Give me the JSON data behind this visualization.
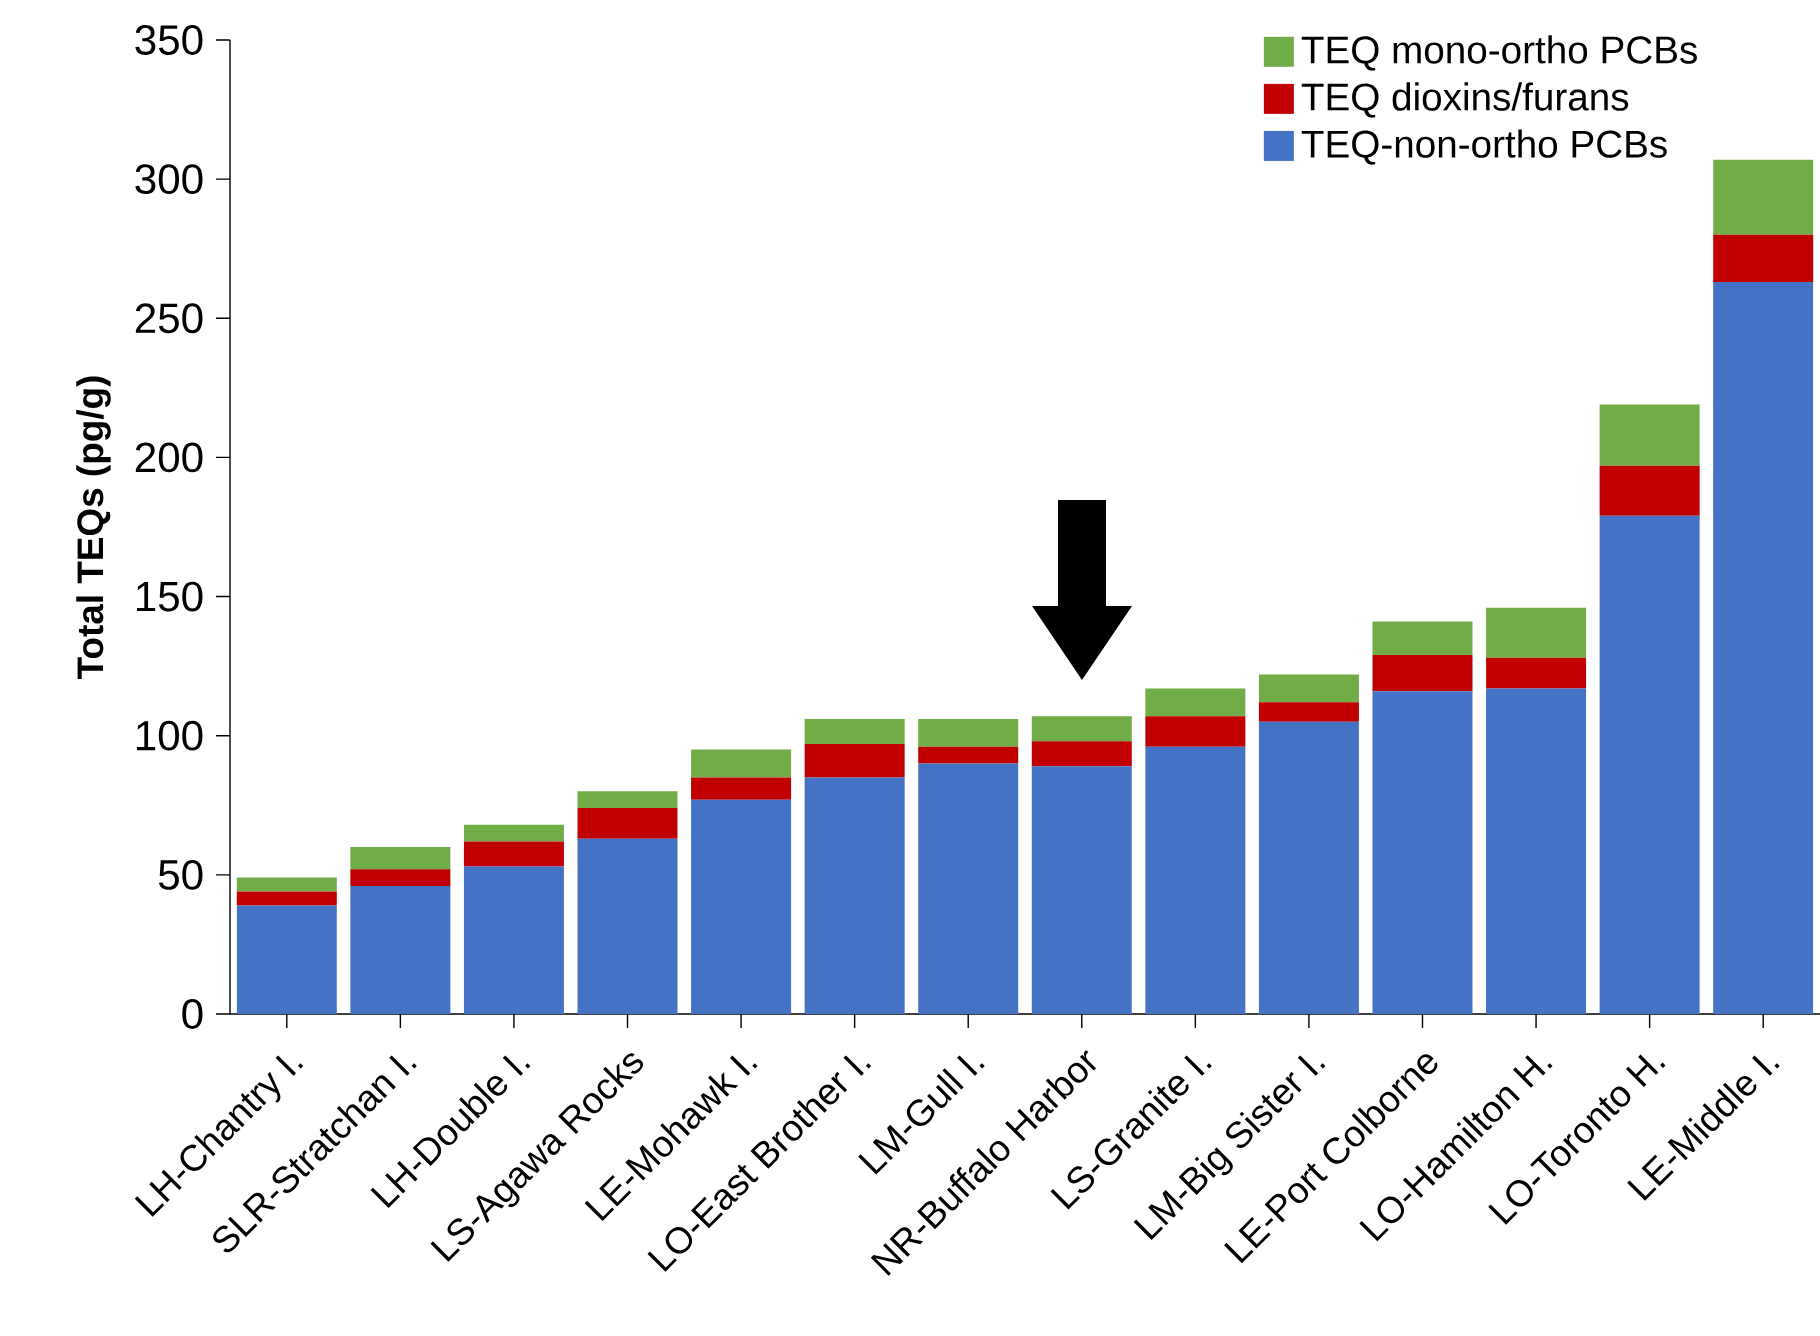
{
  "chart_data": {
    "type": "bar",
    "stacked": true,
    "ylabel": "Total TEQs (pg/g)",
    "categories": [
      "LH-Chantry I.",
      "SLR-Stratchan I.",
      "LH-Double I.",
      "LS-Agawa Rocks",
      "LE-Mohawk I.",
      "LO-East Brother I.",
      "LM-Gull I.",
      "NR-Buffalo Harbor",
      "LS-Granite I.",
      "LM-Big Sister I.",
      "LE-Port Colborne",
      "LO-Hamilton H.",
      "LO-Toronto H.",
      "LE-Middle I."
    ],
    "series": [
      {
        "name": "TEQ-non-ortho PCBs",
        "color": "#4472c4",
        "values": [
          39,
          46,
          53,
          63,
          77,
          85,
          90,
          89,
          96,
          105,
          116,
          117,
          179,
          263
        ]
      },
      {
        "name": "TEQ dioxins/furans",
        "color": "#c00000",
        "values": [
          5,
          6,
          9,
          11,
          8,
          12,
          6,
          9,
          11,
          7,
          13,
          11,
          18,
          17
        ]
      },
      {
        "name": "TEQ mono-ortho PCBs",
        "color": "#70ad47",
        "values": [
          5,
          8,
          6,
          6,
          10,
          9,
          10,
          9,
          10,
          10,
          12,
          18,
          22,
          27
        ]
      }
    ],
    "ylim": [
      0,
      350
    ],
    "yticks": [
      0,
      50,
      100,
      150,
      200,
      250,
      300,
      350
    ],
    "grid": false,
    "legend": "top right"
  }
}
